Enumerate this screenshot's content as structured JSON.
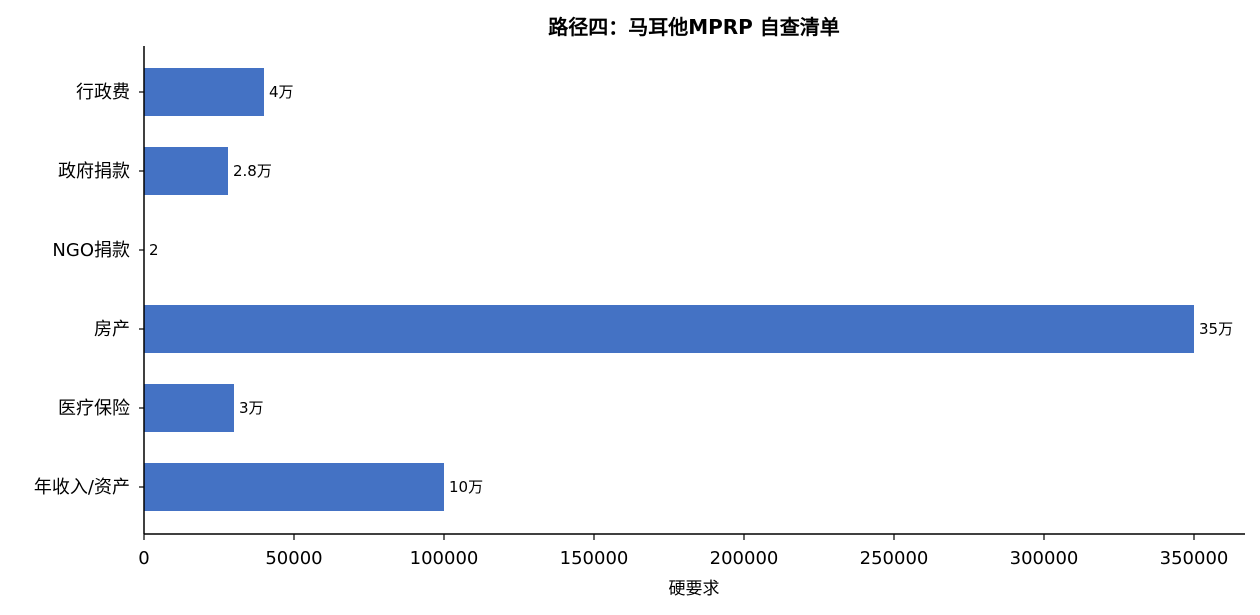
{
  "chart_data": {
    "type": "bar",
    "orientation": "horizontal",
    "title": "路径四：马耳他MPRP 自查清单",
    "xlabel": "硬要求",
    "ylabel": "",
    "categories": [
      "行政费",
      "政府捐款",
      "NGO捐款",
      "房产",
      "医疗保险",
      "年收入/资产"
    ],
    "values": [
      40000,
      28000,
      2,
      350000,
      30000,
      100000
    ],
    "data_labels": [
      "4万",
      "2.8万",
      "2",
      "35万",
      "3万",
      "10万"
    ],
    "xlim": [
      0,
      367000
    ],
    "xticks": [
      0,
      50000,
      100000,
      150000,
      200000,
      250000,
      300000,
      350000
    ],
    "xtick_labels": [
      "0",
      "50000",
      "100000",
      "150000",
      "200000",
      "250000",
      "300000",
      "350000"
    ],
    "grid": false,
    "colors": {
      "bar": "#4472c4",
      "axis": "#000000"
    }
  }
}
